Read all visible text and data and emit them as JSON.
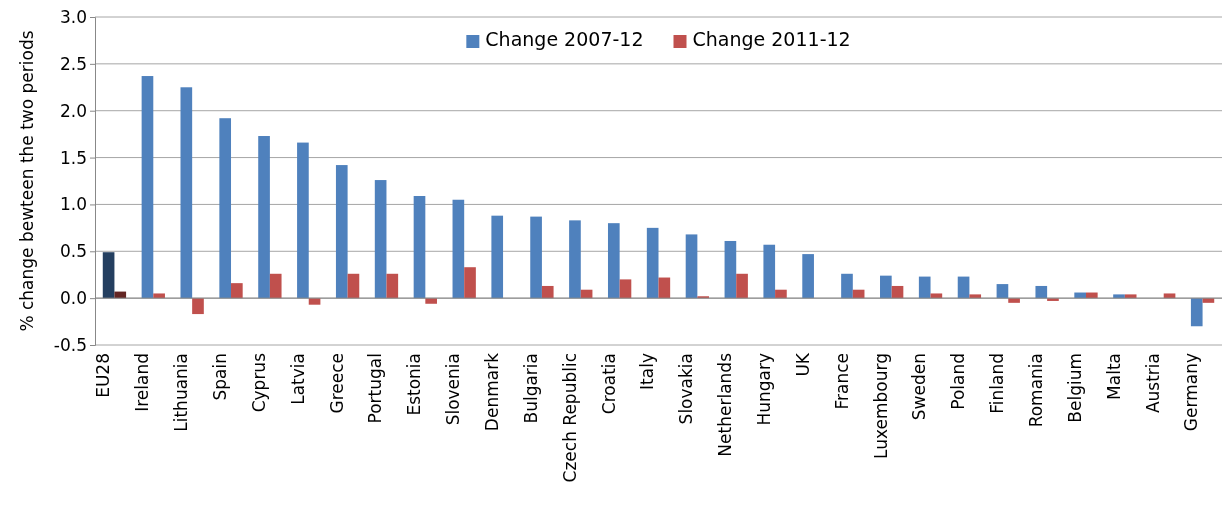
{
  "chart_data": {
    "type": "bar",
    "ylabel": "% change bewteen the two periods",
    "categories": [
      "EU28",
      "Ireland",
      "Lithuania",
      "Spain",
      "Cyprus",
      "Latvia",
      "Greece",
      "Portugal",
      "Estonia",
      "Slovenia",
      "Denmark",
      "Bulgaria",
      "Czech Republic",
      "Croatia",
      "Italy",
      "Slovakia",
      "Netherlands",
      "Hungary",
      "UK",
      "France",
      "Luxembourg",
      "Sweden",
      "Poland",
      "Finland",
      "Romania",
      "Belgium",
      "Malta",
      "Austria",
      "Germany"
    ],
    "series": [
      {
        "name": "Change 2007-12",
        "color": "#4f81bd",
        "colors": [
          "#243f60",
          "#4f81bd",
          "#4f81bd",
          "#4f81bd",
          "#4f81bd",
          "#4f81bd",
          "#4f81bd",
          "#4f81bd",
          "#4f81bd",
          "#4f81bd",
          "#4f81bd",
          "#4f81bd",
          "#4f81bd",
          "#4f81bd",
          "#4f81bd",
          "#4f81bd",
          "#4f81bd",
          "#4f81bd",
          "#4f81bd",
          "#4f81bd",
          "#4f81bd",
          "#4f81bd",
          "#4f81bd",
          "#4f81bd",
          "#4f81bd",
          "#4f81bd",
          "#4f81bd",
          "#4f81bd",
          "#4f81bd"
        ],
        "values": [
          0.49,
          2.37,
          2.25,
          1.92,
          1.73,
          1.66,
          1.42,
          1.26,
          1.09,
          1.05,
          0.88,
          0.87,
          0.83,
          0.8,
          0.75,
          0.68,
          0.61,
          0.57,
          0.47,
          0.26,
          0.24,
          0.23,
          0.23,
          0.15,
          0.13,
          0.06,
          0.04,
          0,
          -0.3
        ]
      },
      {
        "name": "Change 2011-12",
        "color": "#c0504d",
        "colors": [
          "#632523",
          "#c0504d",
          "#c0504d",
          "#c0504d",
          "#c0504d",
          "#c0504d",
          "#c0504d",
          "#c0504d",
          "#c0504d",
          "#c0504d",
          "#c0504d",
          "#c0504d",
          "#c0504d",
          "#c0504d",
          "#c0504d",
          "#c0504d",
          "#c0504d",
          "#c0504d",
          "#c0504d",
          "#c0504d",
          "#c0504d",
          "#c0504d",
          "#c0504d",
          "#c0504d",
          "#c0504d",
          "#c0504d",
          "#c0504d",
          "#c0504d",
          "#c0504d"
        ],
        "values": [
          0.07,
          0.05,
          -0.17,
          0.16,
          0.26,
          -0.07,
          0.26,
          0.26,
          -0.06,
          0.33,
          0,
          0.13,
          0.09,
          0.2,
          0.22,
          0.02,
          0.26,
          0.09,
          0,
          0.09,
          0.13,
          0.05,
          0.04,
          -0.05,
          -0.03,
          0.06,
          0.04,
          0.05,
          -0.05
        ]
      }
    ],
    "ylim": [
      -0.5,
      3.0
    ],
    "yticks": [
      {
        "value": -0.5,
        "label": "-0.5"
      },
      {
        "value": 0,
        "label": "0.0"
      },
      {
        "value": 0.5,
        "label": "0.5"
      },
      {
        "value": 1,
        "label": "1.0"
      },
      {
        "value": 1.5,
        "label": "1.5"
      },
      {
        "value": 2,
        "label": "2.0"
      },
      {
        "value": 2.5,
        "label": "2.5"
      },
      {
        "value": 3,
        "label": "3.0"
      }
    ],
    "grid": "y",
    "legend": "top"
  }
}
